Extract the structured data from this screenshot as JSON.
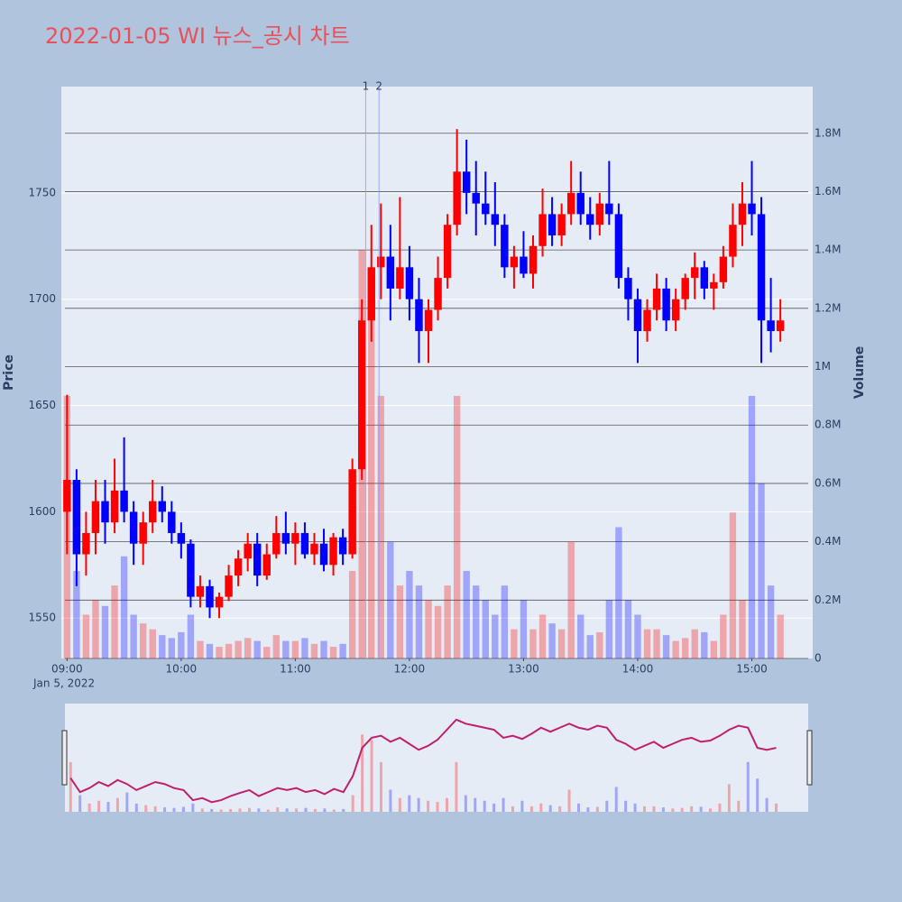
{
  "chart_data": {
    "type": "candlestick",
    "title": "2022-01-05 WI 뉴스_공시 차트",
    "x_date_label": "Jan 5, 2022",
    "y_title": "Price",
    "y2_title": "Volume",
    "x": [
      "09:00",
      "09:05",
      "09:10",
      "09:15",
      "09:20",
      "09:25",
      "09:30",
      "09:35",
      "09:40",
      "09:45",
      "09:50",
      "09:55",
      "10:00",
      "10:05",
      "10:10",
      "10:15",
      "10:20",
      "10:25",
      "10:30",
      "10:35",
      "10:40",
      "10:45",
      "10:50",
      "10:55",
      "11:00",
      "11:05",
      "11:10",
      "11:15",
      "11:20",
      "11:25",
      "11:30",
      "11:35",
      "11:40",
      "11:45",
      "11:50",
      "11:55",
      "12:00",
      "12:05",
      "12:10",
      "12:15",
      "12:20",
      "12:25",
      "12:30",
      "12:35",
      "12:40",
      "12:45",
      "12:50",
      "12:55",
      "13:00",
      "13:05",
      "13:10",
      "13:15",
      "13:20",
      "13:25",
      "13:30",
      "13:35",
      "13:40",
      "13:45",
      "13:50",
      "13:55",
      "14:00",
      "14:05",
      "14:10",
      "14:15",
      "14:20",
      "14:25",
      "14:30",
      "14:35",
      "14:40",
      "14:45",
      "14:50",
      "14:55",
      "15:00",
      "15:05",
      "15:10",
      "15:15"
    ],
    "open": [
      1600,
      1615,
      1580,
      1590,
      1605,
      1595,
      1610,
      1600,
      1585,
      1595,
      1605,
      1600,
      1590,
      1585,
      1560,
      1565,
      1555,
      1560,
      1570,
      1578,
      1585,
      1570,
      1580,
      1590,
      1585,
      1590,
      1580,
      1585,
      1575,
      1588,
      1580,
      1620,
      1690,
      1715,
      1720,
      1705,
      1715,
      1700,
      1685,
      1695,
      1710,
      1735,
      1760,
      1750,
      1745,
      1740,
      1735,
      1715,
      1720,
      1712,
      1725,
      1740,
      1730,
      1740,
      1750,
      1740,
      1735,
      1745,
      1740,
      1710,
      1700,
      1685,
      1695,
      1705,
      1690,
      1700,
      1710,
      1715,
      1705,
      1708,
      1720,
      1735,
      1745,
      1740,
      1690,
      1685
    ],
    "high": [
      1655,
      1620,
      1600,
      1615,
      1615,
      1625,
      1635,
      1605,
      1600,
      1615,
      1612,
      1605,
      1595,
      1587,
      1570,
      1568,
      1562,
      1575,
      1582,
      1590,
      1590,
      1585,
      1598,
      1600,
      1595,
      1595,
      1590,
      1592,
      1590,
      1592,
      1625,
      1700,
      1735,
      1745,
      1735,
      1748,
      1725,
      1710,
      1700,
      1720,
      1740,
      1780,
      1775,
      1765,
      1760,
      1755,
      1740,
      1725,
      1732,
      1730,
      1752,
      1748,
      1745,
      1765,
      1760,
      1748,
      1750,
      1765,
      1745,
      1715,
      1705,
      1700,
      1712,
      1710,
      1705,
      1712,
      1722,
      1718,
      1712,
      1725,
      1745,
      1755,
      1765,
      1748,
      1710,
      1700
    ],
    "low": [
      1580,
      1565,
      1570,
      1580,
      1585,
      1590,
      1595,
      1575,
      1575,
      1590,
      1595,
      1585,
      1578,
      1555,
      1555,
      1550,
      1550,
      1558,
      1565,
      1572,
      1565,
      1568,
      1578,
      1580,
      1575,
      1578,
      1575,
      1572,
      1570,
      1575,
      1578,
      1615,
      1680,
      1700,
      1690,
      1700,
      1690,
      1670,
      1670,
      1690,
      1705,
      1730,
      1740,
      1730,
      1735,
      1725,
      1710,
      1705,
      1710,
      1705,
      1720,
      1725,
      1725,
      1735,
      1735,
      1728,
      1730,
      1735,
      1705,
      1690,
      1670,
      1680,
      1690,
      1685,
      1685,
      1695,
      1700,
      1700,
      1695,
      1705,
      1715,
      1725,
      1730,
      1670,
      1675,
      1680
    ],
    "close": [
      1615,
      1580,
      1590,
      1605,
      1595,
      1610,
      1600,
      1585,
      1595,
      1605,
      1600,
      1590,
      1585,
      1560,
      1565,
      1555,
      1560,
      1570,
      1578,
      1585,
      1570,
      1580,
      1590,
      1585,
      1590,
      1580,
      1585,
      1575,
      1588,
      1580,
      1620,
      1690,
      1715,
      1720,
      1705,
      1715,
      1700,
      1685,
      1695,
      1710,
      1735,
      1760,
      1750,
      1745,
      1740,
      1735,
      1715,
      1720,
      1712,
      1725,
      1740,
      1730,
      1740,
      1750,
      1740,
      1735,
      1745,
      1740,
      1710,
      1700,
      1685,
      1695,
      1705,
      1690,
      1700,
      1710,
      1715,
      1705,
      1708,
      1720,
      1735,
      1745,
      1740,
      1690,
      1685,
      1690
    ],
    "volume": [
      900000,
      300000,
      150000,
      200000,
      180000,
      250000,
      350000,
      150000,
      120000,
      100000,
      80000,
      70000,
      90000,
      150000,
      60000,
      50000,
      40000,
      50000,
      60000,
      70000,
      60000,
      40000,
      80000,
      60000,
      60000,
      70000,
      50000,
      60000,
      40000,
      50000,
      300000,
      1400000,
      1300000,
      900000,
      400000,
      250000,
      300000,
      250000,
      200000,
      180000,
      250000,
      900000,
      300000,
      250000,
      200000,
      150000,
      250000,
      100000,
      200000,
      100000,
      150000,
      120000,
      100000,
      400000,
      150000,
      80000,
      90000,
      200000,
      450000,
      200000,
      150000,
      100000,
      100000,
      80000,
      60000,
      70000,
      100000,
      90000,
      60000,
      150000,
      500000,
      200000,
      900000,
      600000,
      250000,
      150000
    ],
    "increasing_color": "#ff0000",
    "decreasing_color": "#0000ff",
    "xlim": [
      "08:57",
      "15:32"
    ],
    "xticks": [
      "09:00",
      "10:00",
      "11:00",
      "12:00",
      "13:00",
      "14:00",
      "15:00"
    ],
    "ylim": [
      1531,
      1800
    ],
    "yticks": [
      1550,
      1600,
      1650,
      1700,
      1750
    ],
    "y2lim": [
      0,
      1960000
    ],
    "y2ticks": [
      0,
      {
        "value": 200000,
        "label": "0.2M"
      },
      {
        "value": 400000,
        "label": "0.4M"
      },
      {
        "value": 600000,
        "label": "0.6M"
      },
      {
        "value": 800000,
        "label": "0.8M"
      },
      {
        "value": 1000000,
        "label": "1M"
      },
      {
        "value": 1200000,
        "label": "1.2M"
      },
      {
        "value": 1400000,
        "label": "1.4M"
      },
      {
        "value": 1600000,
        "label": "1.6M"
      },
      {
        "value": 1800000,
        "label": "1.8M"
      }
    ],
    "annotations": [
      {
        "x": "11:37",
        "text": "1"
      },
      {
        "x": "11:44",
        "text": "2"
      }
    ],
    "grid": true
  }
}
